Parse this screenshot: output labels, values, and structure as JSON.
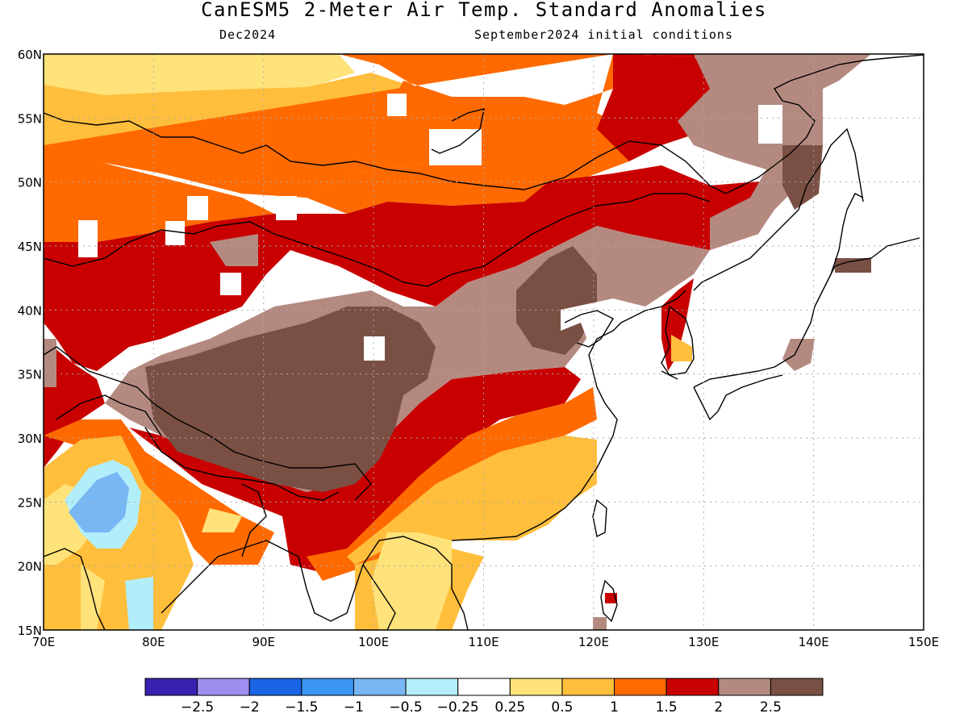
{
  "header": {
    "title": "CanESM5 2-Meter Air Temp. Standard Anomalies",
    "valid": "Dec2024",
    "init": "September2024 initial conditions"
  },
  "map": {
    "lon_range": [
      70,
      150
    ],
    "lat_range": [
      15,
      60
    ],
    "lon_ticks": [
      "70E",
      "80E",
      "90E",
      "100E",
      "110E",
      "120E",
      "130E",
      "140E",
      "150E"
    ],
    "lat_ticks": [
      "60N",
      "55N",
      "50N",
      "45N",
      "40N",
      "35N",
      "30N",
      "25N",
      "20N",
      "15N"
    ],
    "grid": "dotted"
  },
  "colorbar": {
    "colors": [
      "#3a22b0",
      "#9e8ef0",
      "#1a64e6",
      "#3a96f2",
      "#78b6f4",
      "#b2eefa",
      "#ffffff",
      "#ffe27a",
      "#ffbe3c",
      "#ff6a00",
      "#c80000",
      "#b48a80",
      "#7a5044"
    ],
    "labels": [
      "-2.5",
      "-2",
      "-1.5",
      "-1",
      "-0.5",
      "-0.25",
      "0.25",
      "0.5",
      "1",
      "1.5",
      "2",
      "2.5"
    ]
  }
}
